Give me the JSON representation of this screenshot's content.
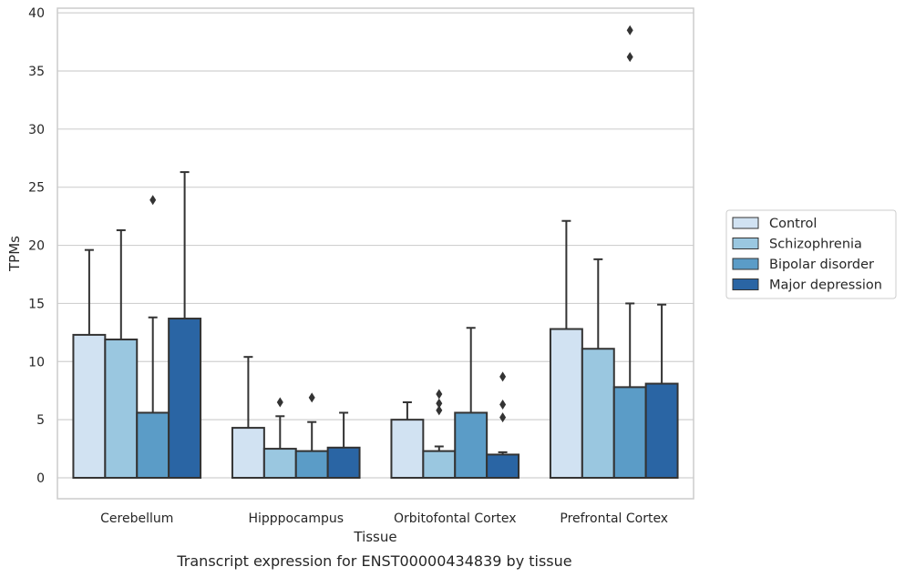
{
  "chart_data": {
    "type": "bar",
    "caption": "Transcript expression for ENST00000434839 by tissue",
    "xlabel": "Tissue",
    "ylabel": "TPMs",
    "ylim": [
      -1.8,
      40.4
    ],
    "yticks": [
      0,
      5,
      10,
      15,
      20,
      25,
      30,
      35,
      40
    ],
    "grid": true,
    "legend_position": "right",
    "categories": [
      "Cerebellum",
      "Hipppocampus",
      "Orbitofontal Cortex",
      "Prefrontal Cortex"
    ],
    "series": [
      {
        "name": "Control",
        "color": "#d1e2f2",
        "values": [
          12.3,
          4.3,
          5.0,
          12.8
        ],
        "error_upper": [
          19.6,
          10.4,
          6.5,
          22.1
        ],
        "outliers": [
          [],
          [],
          [],
          []
        ]
      },
      {
        "name": "Schizophrenia",
        "color": "#9ac7e0",
        "values": [
          11.9,
          2.5,
          2.3,
          11.1
        ],
        "error_upper": [
          21.3,
          5.3,
          2.7,
          18.8
        ],
        "outliers": [
          [],
          [
            6.5
          ],
          [
            5.8,
            6.4,
            7.2
          ],
          []
        ]
      },
      {
        "name": "Bipolar disorder",
        "color": "#5b9cc7",
        "values": [
          5.6,
          2.3,
          5.6,
          7.8
        ],
        "error_upper": [
          13.8,
          4.8,
          12.9,
          15.0
        ],
        "outliers": [
          [
            23.9
          ],
          [
            6.9
          ],
          [],
          [
            36.2,
            38.5
          ]
        ]
      },
      {
        "name": "Major depression",
        "color": "#2a65a4",
        "values": [
          13.7,
          2.6,
          2.0,
          8.1
        ],
        "error_upper": [
          26.3,
          5.6,
          2.2,
          14.9
        ],
        "outliers": [
          [],
          [],
          [
            5.2,
            6.3,
            8.7
          ],
          []
        ]
      }
    ]
  }
}
